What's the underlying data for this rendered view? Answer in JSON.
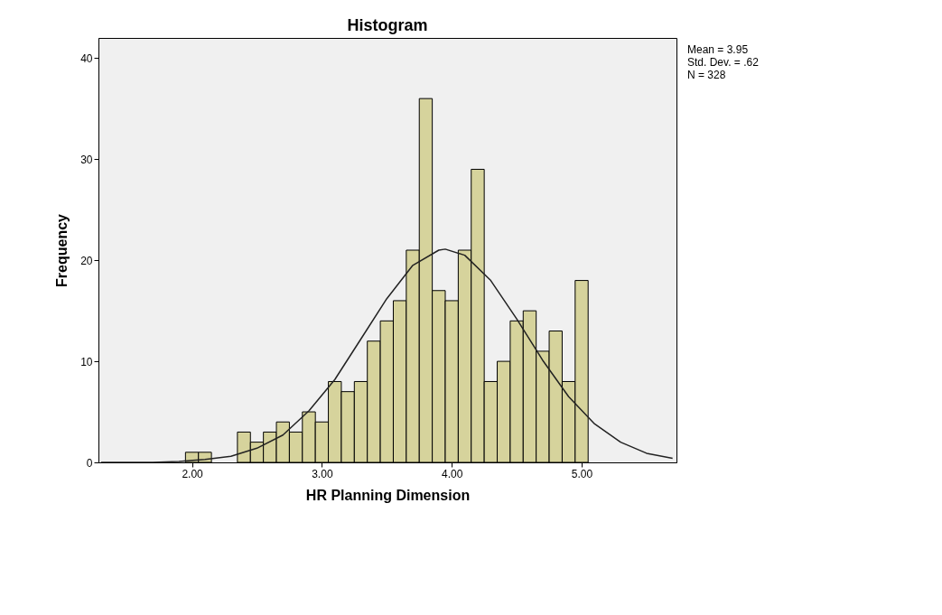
{
  "chart_data": {
    "type": "histogram",
    "title": "Histogram",
    "xlabel": "HR Planning Dimension",
    "ylabel": "Frequency",
    "bins": [
      1.95,
      2.05,
      2.15,
      2.25,
      2.35,
      2.45,
      2.55,
      2.65,
      2.75,
      2.85,
      2.95,
      3.05,
      3.15,
      3.25,
      3.35,
      3.45,
      3.55,
      3.65,
      3.75,
      3.85,
      3.95,
      4.05,
      4.15,
      4.25,
      4.35,
      4.45,
      4.55,
      4.65,
      4.75,
      4.85,
      4.95,
      5.05
    ],
    "values": [
      1,
      1,
      0,
      0,
      3,
      2,
      3,
      4,
      3,
      5,
      4,
      8,
      7,
      8,
      12,
      14,
      16,
      21,
      36,
      17,
      16,
      21,
      29,
      8,
      10,
      14,
      15,
      11,
      13,
      8,
      18
    ],
    "color": "#d6d39c",
    "series": [
      {
        "type": "line",
        "color": "#222222",
        "x": [
          1.3,
          1.5,
          1.7,
          1.9,
          2.1,
          2.3,
          2.5,
          2.7,
          2.9,
          3.1,
          3.3,
          3.5,
          3.7,
          3.9,
          3.95,
          4.1,
          4.3,
          4.5,
          4.7,
          4.9,
          5.1,
          5.3,
          5.5,
          5.7
        ],
        "values": [
          0.0,
          0.0,
          0.0,
          0.1,
          0.3,
          0.6,
          1.4,
          2.7,
          5.1,
          8.2,
          12.2,
          16.2,
          19.5,
          21.0,
          21.1,
          20.5,
          18.0,
          14.2,
          10.1,
          6.5,
          3.8,
          2.0,
          0.9,
          0.4
        ]
      }
    ],
    "xlim": [
      1.28,
      5.73
    ],
    "ylim": [
      0,
      42
    ],
    "xticks": [
      {
        "value": 2,
        "label": "2.00"
      },
      {
        "value": 3,
        "label": "3.00"
      },
      {
        "value": 4,
        "label": "4.00"
      },
      {
        "value": 5,
        "label": "5.00"
      }
    ],
    "yticks": [
      0,
      10,
      20,
      30,
      40
    ],
    "grid": false,
    "annotations": [
      "Mean = 3.95",
      "Std. Dev. = .62",
      "N = 328"
    ]
  }
}
